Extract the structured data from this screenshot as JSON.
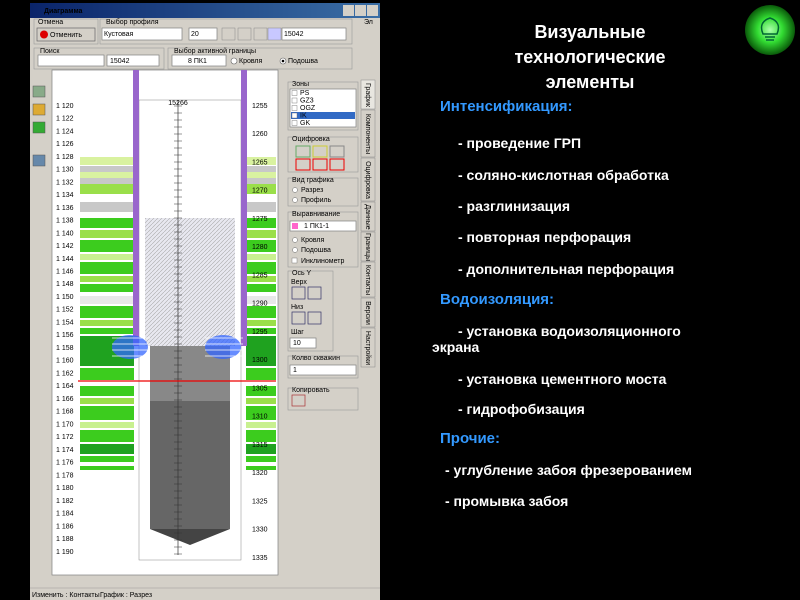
{
  "window": {
    "title": "Диаграмма",
    "corner": "Эл"
  },
  "toolbar": {
    "cancel_group": "Отмена",
    "cancel_button": "Отменить",
    "profile_group": "Выбор профиля",
    "profile": "Кустовая",
    "profile_num": "20",
    "profile_well": "15042",
    "search_group": "Поиск",
    "search_value": "15042",
    "boundary_group": "Выбор активной границы",
    "boundary": "8 ПК1",
    "roof": "Кровля",
    "sole": "Подошва"
  },
  "chart": {
    "well": "15266",
    "depth_left": [
      "1 120",
      "1 122",
      "1 124",
      "1 126",
      "1 128",
      "1 130",
      "1 132",
      "1 134",
      "1 136",
      "1 138",
      "1 140",
      "1 142",
      "1 144",
      "1 146",
      "1 148",
      "1 150",
      "1 152",
      "1 154",
      "1 156",
      "1 158",
      "1 160",
      "1 162",
      "1 164",
      "1 166",
      "1 168",
      "1 170",
      "1 172",
      "1 174",
      "1 176",
      "1 178",
      "1 180",
      "1 182",
      "1 184",
      "1 186",
      "1 188",
      "1 190"
    ],
    "depth_right": [
      "1255",
      "1260",
      "1265",
      "1270",
      "1275",
      "1280",
      "1285",
      "1290",
      "1295",
      "1300",
      "1305",
      "1310",
      "1315",
      "1320",
      "1325",
      "1330",
      "1335"
    ]
  },
  "panel": {
    "zones": "Зоны",
    "zone_list": [
      "PS",
      "GZ3",
      "OGZ",
      "IK",
      "GK"
    ],
    "digitize": "Оцифровка",
    "view": "Вид графика",
    "view_section": "Разрез",
    "view_profile": "Профиль",
    "align": "Выравнивание",
    "align_value": "1 ПК1-1",
    "align_roof": "Кровля",
    "align_sole": "Подошва",
    "inclinometer": "Инклинометр",
    "axis_y": "Ось Y",
    "top": "Верх",
    "bottom": "Низ",
    "step": "Шаг",
    "step_value": "10",
    "wells": "Колво скважин",
    "wells_value": "1",
    "copy": "Копировать"
  },
  "tabs": [
    "График",
    "Компоненты",
    "Оцифровка",
    "Данные",
    "Границы",
    "Контакты",
    "Версии",
    "Настройки"
  ],
  "status": [
    "Изменить : Контакты",
    "График : Разрез"
  ],
  "slide": {
    "title": "Визуальные технологические элементы",
    "sections": [
      {
        "heading": "Интенсификация:",
        "items": [
          "- проведение ГРП",
          "- соляно-кислотная обработка",
          "- разглинизация",
          "- повторная перфорация",
          "- дополнительная перфорация"
        ]
      },
      {
        "heading": "Водоизоляция:",
        "items": [
          "- установка водоизоляционного экрана",
          "- установка цементного моста",
          "- гидрофобизация"
        ]
      },
      {
        "heading": "Прочие:",
        "items": [
          "- углубление забоя фрезерованием",
          "- промывка забоя"
        ]
      }
    ]
  }
}
